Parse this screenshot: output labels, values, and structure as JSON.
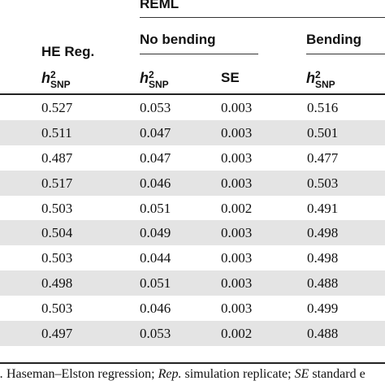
{
  "header": {
    "group_label": "REML",
    "he_reg_label": "HE Reg.",
    "no_bending_label": "No bending",
    "bending_label": "Bending",
    "se_label": "SE",
    "h2snp": {
      "base": "h",
      "sup": "2",
      "sub": "SNP"
    }
  },
  "rows": [
    {
      "he": "0.527",
      "nb": "0.053",
      "se": "0.003",
      "b": "0.516"
    },
    {
      "he": "0.511",
      "nb": "0.047",
      "se": "0.003",
      "b": "0.501"
    },
    {
      "he": "0.487",
      "nb": "0.047",
      "se": "0.003",
      "b": "0.477"
    },
    {
      "he": "0.517",
      "nb": "0.046",
      "se": "0.003",
      "b": "0.503"
    },
    {
      "he": "0.503",
      "nb": "0.051",
      "se": "0.002",
      "b": "0.491"
    },
    {
      "he": "0.504",
      "nb": "0.049",
      "se": "0.003",
      "b": "0.498"
    },
    {
      "he": "0.503",
      "nb": "0.044",
      "se": "0.003",
      "b": "0.498"
    },
    {
      "he": "0.498",
      "nb": "0.051",
      "se": "0.003",
      "b": "0.488"
    },
    {
      "he": "0.503",
      "nb": "0.046",
      "se": "0.003",
      "b": "0.499"
    },
    {
      "he": "0.497",
      "nb": "0.053",
      "se": "0.002",
      "b": "0.488"
    }
  ],
  "footnote": {
    "part1_italic": "g.",
    "part2": " Haseman–Elston regression; ",
    "part3_italic": "Rep.",
    "part4": " simulation replicate; ",
    "part5_italic": "SE",
    "part6": " standard e"
  }
}
